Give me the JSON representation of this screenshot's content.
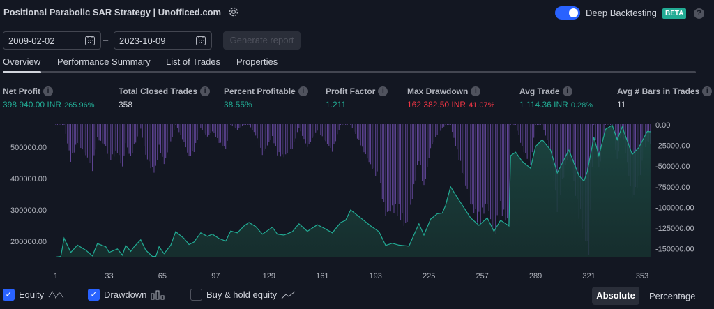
{
  "header": {
    "title": "Positional Parabolic SAR Strategy | Unofficed.com",
    "deep_backtesting_label": "Deep Backtesting",
    "deep_backtesting_on": true,
    "beta_badge": "BETA",
    "help": "?"
  },
  "dates": {
    "from": "2009-02-02",
    "separator": "–",
    "to": "2023-10-09",
    "generate_label": "Generate report"
  },
  "tabs": [
    {
      "label": "Overview",
      "active": true
    },
    {
      "label": "Performance Summary"
    },
    {
      "label": "List of Trades"
    },
    {
      "label": "Properties"
    }
  ],
  "metrics": [
    {
      "label": "Net Profit",
      "value": "398 940.00 INR",
      "sub": "265.96%",
      "color": "green"
    },
    {
      "label": "Total Closed Trades",
      "value": "358",
      "color": "white"
    },
    {
      "label": "Percent Profitable",
      "value": "38.55%",
      "color": "green"
    },
    {
      "label": "Profit Factor",
      "value": "1.211",
      "color": "green"
    },
    {
      "label": "Max Drawdown",
      "value": "162 382.50 INR",
      "sub": "41.07%",
      "color": "red"
    },
    {
      "label": "Avg Trade",
      "value": "1 114.36 INR",
      "sub": "0.28%",
      "color": "green"
    },
    {
      "label": "Avg # Bars in Trades",
      "value": "11",
      "color": "white"
    }
  ],
  "legend": {
    "equity": "Equity",
    "equity_checked": true,
    "drawdown": "Drawdown",
    "drawdown_checked": true,
    "buy_hold": "Buy & hold equity",
    "buy_hold_checked": false,
    "absolute": "Absolute",
    "percentage": "Percentage"
  },
  "colors": {
    "equity": "#22ab94",
    "drawdown": "#7e57c2",
    "negative": "#f23645",
    "accent": "#2962ff"
  },
  "chart_data": {
    "type": "area",
    "x_ticks": [
      "1",
      "33",
      "65",
      "97",
      "129",
      "161",
      "193",
      "225",
      "257",
      "289",
      "321",
      "353"
    ],
    "left_ticks": [
      "500000.00",
      "400000.00",
      "300000.00",
      "200000.00"
    ],
    "right_ticks": [
      "0.00",
      "-25000.00",
      "-50000.00",
      "-75000.00",
      "-100000.00",
      "-125000.00",
      "-150000.00"
    ],
    "xlim": [
      1,
      358
    ],
    "ylim_left": [
      150000,
      570000
    ],
    "ylim_right": [
      -165000,
      0
    ],
    "equity": [
      [
        1,
        150000
      ],
      [
        4,
        152000
      ],
      [
        6,
        210000
      ],
      [
        8,
        187000
      ],
      [
        10,
        165000
      ],
      [
        14,
        188000
      ],
      [
        19,
        172000
      ],
      [
        23,
        154000
      ],
      [
        26,
        193000
      ],
      [
        31,
        183000
      ],
      [
        33,
        165000
      ],
      [
        38,
        176000
      ],
      [
        41,
        156000
      ],
      [
        43,
        187000
      ],
      [
        46,
        168000
      ],
      [
        48,
        183000
      ],
      [
        52,
        205000
      ],
      [
        55,
        172000
      ],
      [
        59,
        152000
      ],
      [
        61,
        152000
      ],
      [
        63,
        183000
      ],
      [
        66,
        161000
      ],
      [
        70,
        188000
      ],
      [
        73,
        231000
      ],
      [
        78,
        209000
      ],
      [
        81,
        190000
      ],
      [
        84,
        198000
      ],
      [
        88,
        227000
      ],
      [
        92,
        216000
      ],
      [
        95,
        223000
      ],
      [
        99,
        209000
      ],
      [
        103,
        201000
      ],
      [
        106,
        233000
      ],
      [
        110,
        227000
      ],
      [
        114,
        249000
      ],
      [
        117,
        260000
      ],
      [
        121,
        247000
      ],
      [
        125,
        223000
      ],
      [
        131,
        245000
      ],
      [
        134,
        223000
      ],
      [
        138,
        220000
      ],
      [
        143,
        231000
      ],
      [
        147,
        256000
      ],
      [
        152,
        232000
      ],
      [
        158,
        253000
      ],
      [
        162,
        242000
      ],
      [
        167,
        227000
      ],
      [
        172,
        260000
      ],
      [
        175,
        267000
      ],
      [
        178,
        300000
      ],
      [
        184,
        275000
      ],
      [
        190,
        249000
      ],
      [
        195,
        231000
      ],
      [
        199,
        187000
      ],
      [
        203,
        194000
      ],
      [
        207,
        188000
      ],
      [
        213,
        185000
      ],
      [
        219,
        256000
      ],
      [
        222,
        220000
      ],
      [
        226,
        271000
      ],
      [
        230,
        288000
      ],
      [
        233,
        290000
      ],
      [
        235,
        315000
      ],
      [
        238,
        374000
      ],
      [
        241,
        348000
      ],
      [
        250,
        275000
      ],
      [
        255,
        251000
      ],
      [
        260,
        275000
      ],
      [
        264,
        232000
      ],
      [
        268,
        267000
      ],
      [
        273,
        249000
      ],
      [
        274,
        473000
      ],
      [
        277,
        484000
      ],
      [
        281,
        455000
      ],
      [
        286,
        433000
      ],
      [
        289,
        502000
      ],
      [
        293,
        524000
      ],
      [
        298,
        491000
      ],
      [
        302,
        418000
      ],
      [
        309,
        491000
      ],
      [
        315,
        410000
      ],
      [
        318,
        392000
      ],
      [
        320,
        421000
      ],
      [
        324,
        532000
      ],
      [
        327,
        473000
      ],
      [
        331,
        557000
      ],
      [
        335,
        570000
      ],
      [
        338,
        524000
      ],
      [
        341,
        565000
      ],
      [
        344,
        521000
      ],
      [
        347,
        477000
      ],
      [
        351,
        499000
      ],
      [
        356,
        550000
      ],
      [
        358,
        548940
      ]
    ],
    "drawdown": [
      [
        1,
        0
      ],
      [
        4,
        0
      ],
      [
        6,
        0
      ],
      [
        8,
        -23000
      ],
      [
        10,
        -45000
      ],
      [
        14,
        -22000
      ],
      [
        19,
        -38000
      ],
      [
        23,
        -56000
      ],
      [
        26,
        -17000
      ],
      [
        31,
        -27000
      ],
      [
        33,
        -45000
      ],
      [
        38,
        -34000
      ],
      [
        41,
        -54000
      ],
      [
        43,
        -23000
      ],
      [
        46,
        -42000
      ],
      [
        48,
        -27000
      ],
      [
        52,
        -5000
      ],
      [
        55,
        -38000
      ],
      [
        59,
        -58000
      ],
      [
        61,
        -58000
      ],
      [
        63,
        -27000
      ],
      [
        66,
        -49000
      ],
      [
        70,
        -22000
      ],
      [
        73,
        0
      ],
      [
        78,
        -22000
      ],
      [
        81,
        -41000
      ],
      [
        84,
        -33000
      ],
      [
        88,
        -4000
      ],
      [
        92,
        -15000
      ],
      [
        95,
        -8000
      ],
      [
        99,
        -22000
      ],
      [
        103,
        -30000
      ],
      [
        106,
        0
      ],
      [
        110,
        -6000
      ],
      [
        114,
        0
      ],
      [
        117,
        0
      ],
      [
        121,
        -13000
      ],
      [
        125,
        -37000
      ],
      [
        131,
        -15000
      ],
      [
        134,
        -37000
      ],
      [
        138,
        -40000
      ],
      [
        143,
        -29000
      ],
      [
        147,
        -4000
      ],
      [
        152,
        -28000
      ],
      [
        158,
        -7000
      ],
      [
        162,
        -18000
      ],
      [
        167,
        -33000
      ],
      [
        172,
        0
      ],
      [
        178,
        0
      ],
      [
        184,
        -25000
      ],
      [
        190,
        -51000
      ],
      [
        195,
        -69000
      ],
      [
        199,
        -113000
      ],
      [
        203,
        -106000
      ],
      [
        207,
        -112000
      ],
      [
        211,
        -128000
      ],
      [
        213,
        -115000
      ],
      [
        219,
        -44000
      ],
      [
        222,
        -80000
      ],
      [
        226,
        -29000
      ],
      [
        230,
        -12000
      ],
      [
        235,
        0
      ],
      [
        238,
        0
      ],
      [
        241,
        -26000
      ],
      [
        250,
        -99000
      ],
      [
        255,
        -123000
      ],
      [
        260,
        -99000
      ],
      [
        264,
        -142000
      ],
      [
        268,
        -107000
      ],
      [
        273,
        -125000
      ],
      [
        274,
        0
      ],
      [
        277,
        0
      ],
      [
        281,
        -29000
      ],
      [
        286,
        -51000
      ],
      [
        289,
        0
      ],
      [
        293,
        0
      ],
      [
        298,
        -33000
      ],
      [
        302,
        -106000
      ],
      [
        309,
        -33000
      ],
      [
        315,
        -114000
      ],
      [
        318,
        -132000
      ],
      [
        321,
        -162382
      ],
      [
        324,
        0
      ],
      [
        327,
        -59000
      ],
      [
        331,
        0
      ],
      [
        335,
        0
      ],
      [
        338,
        -46000
      ],
      [
        341,
        -5000
      ],
      [
        344,
        -49000
      ],
      [
        347,
        -93000
      ],
      [
        351,
        -71000
      ],
      [
        356,
        -20000
      ],
      [
        358,
        -24000
      ]
    ]
  }
}
